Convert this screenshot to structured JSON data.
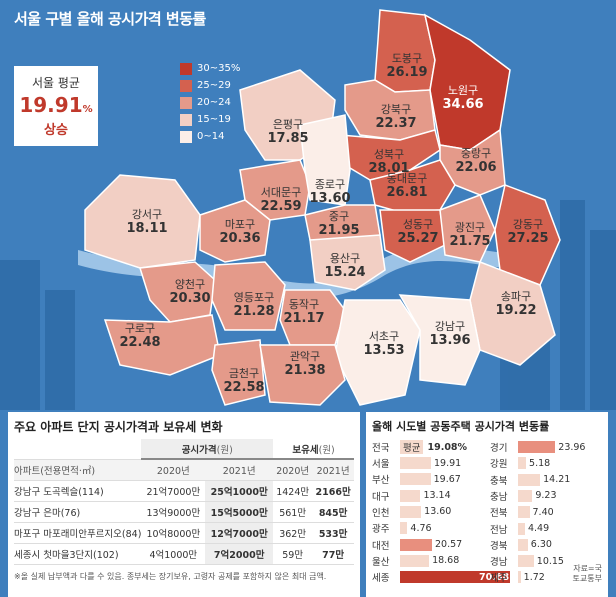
{
  "title": "서울 구별 올해 공시가격 변동률",
  "seoul_avg": {
    "label": "서울 평균",
    "value": "19.91",
    "unit": "%",
    "trend": "상승"
  },
  "legend": [
    {
      "label": "30~35%",
      "color": "#c0392b"
    },
    {
      "label": "25~29",
      "color": "#d4614f"
    },
    {
      "label": "20~24",
      "color": "#e49a8a"
    },
    {
      "label": "15~19",
      "color": "#f2cfc4"
    },
    {
      "label": "0~14",
      "color": "#fbeee8"
    }
  ],
  "districts": [
    {
      "name": "도봉구",
      "value": "26.19"
    },
    {
      "name": "노원구",
      "value": "34.66"
    },
    {
      "name": "강북구",
      "value": "22.37"
    },
    {
      "name": "은평구",
      "value": "17.85"
    },
    {
      "name": "성북구",
      "value": "28.01"
    },
    {
      "name": "중랑구",
      "value": "22.06"
    },
    {
      "name": "서대문구",
      "value": "22.59"
    },
    {
      "name": "종로구",
      "value": "13.60"
    },
    {
      "name": "동대문구",
      "value": "26.81"
    },
    {
      "name": "강서구",
      "value": "18.11"
    },
    {
      "name": "마포구",
      "value": "20.36"
    },
    {
      "name": "중구",
      "value": "21.95"
    },
    {
      "name": "성동구",
      "value": "25.27"
    },
    {
      "name": "광진구",
      "value": "21.75"
    },
    {
      "name": "강동구",
      "value": "27.25"
    },
    {
      "name": "용산구",
      "value": "15.24"
    },
    {
      "name": "양천구",
      "value": "20.30"
    },
    {
      "name": "영등포구",
      "value": "21.28"
    },
    {
      "name": "동작구",
      "value": "21.17"
    },
    {
      "name": "송파구",
      "value": "19.22"
    },
    {
      "name": "구로구",
      "value": "22.48"
    },
    {
      "name": "서초구",
      "value": "13.53"
    },
    {
      "name": "강남구",
      "value": "13.96"
    },
    {
      "name": "금천구",
      "value": "22.58"
    },
    {
      "name": "관악구",
      "value": "21.38"
    }
  ],
  "apartment": {
    "title": "주요 아파트 단지 공시가격과 보유세 변화",
    "group_price": "공시가격",
    "group_tax": "보유세",
    "unit": "(원)",
    "col_name": "아파트(전용면적·㎡)",
    "years": [
      "2020년",
      "2021년",
      "2020년",
      "2021년"
    ],
    "rows": [
      {
        "name": "강남구 도곡렉슬(114)",
        "p2020": "21억7000만",
        "p2021": "25억1000만",
        "t2020": "1424만",
        "t2021": "2166만"
      },
      {
        "name": "강남구 은마(76)",
        "p2020": "13억9000만",
        "p2021": "15억5000만",
        "t2020": "561만",
        "t2021": "845만"
      },
      {
        "name": "마포구 마포래미안푸르지오(84)",
        "p2020": "10억8000만",
        "p2021": "12억7000만",
        "t2020": "362만",
        "t2021": "533만"
      },
      {
        "name": "세종시 첫마을3단지(102)",
        "p2020": "4억1000만",
        "p2021": "7억2000만",
        "t2020": "59만",
        "t2021": "77만"
      }
    ],
    "note": "※올 실제 납부액과 다를 수 있음. 종부세는 장기보유, 고령자 공제를 포함하지 않은 최대 금액."
  },
  "regional": {
    "title": "올해 시도별 공동주택 공시가격 변동률",
    "national": {
      "name": "전국",
      "tag": "평균",
      "value": "19.08%"
    },
    "left": [
      {
        "name": "서울",
        "value": "19.91"
      },
      {
        "name": "부산",
        "value": "19.67"
      },
      {
        "name": "대구",
        "value": "13.14"
      },
      {
        "name": "인천",
        "value": "13.60"
      },
      {
        "name": "광주",
        "value": "4.76"
      },
      {
        "name": "대전",
        "value": "20.57"
      },
      {
        "name": "울산",
        "value": "18.68"
      },
      {
        "name": "세종",
        "value": "70.68"
      }
    ],
    "right": [
      {
        "name": "경기",
        "value": "23.96"
      },
      {
        "name": "강원",
        "value": "5.18"
      },
      {
        "name": "충북",
        "value": "14.21"
      },
      {
        "name": "충남",
        "value": "9.23"
      },
      {
        "name": "전북",
        "value": "7.40"
      },
      {
        "name": "전남",
        "value": "4.49"
      },
      {
        "name": "경북",
        "value": "6.30"
      },
      {
        "name": "경남",
        "value": "10.15"
      },
      {
        "name": "제주",
        "value": "1.72"
      }
    ],
    "source": "자료=국토교통부"
  }
}
